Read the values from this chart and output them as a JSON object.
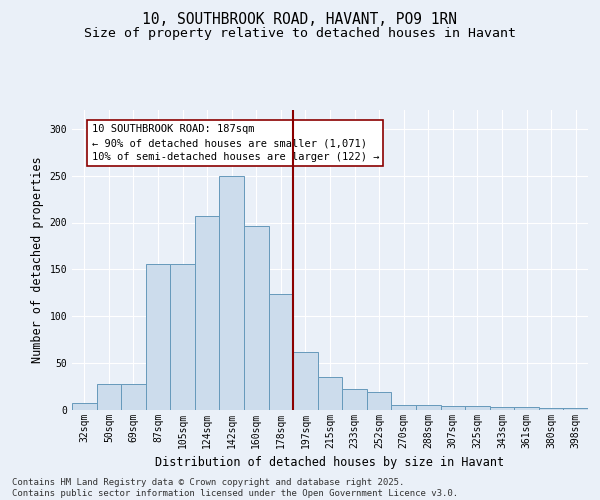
{
  "title_line1": "10, SOUTHBROOK ROAD, HAVANT, PO9 1RN",
  "title_line2": "Size of property relative to detached houses in Havant",
  "xlabel": "Distribution of detached houses by size in Havant",
  "ylabel": "Number of detached properties",
  "categories": [
    "32sqm",
    "50sqm",
    "69sqm",
    "87sqm",
    "105sqm",
    "124sqm",
    "142sqm",
    "160sqm",
    "178sqm",
    "197sqm",
    "215sqm",
    "233sqm",
    "252sqm",
    "270sqm",
    "288sqm",
    "307sqm",
    "325sqm",
    "343sqm",
    "361sqm",
    "380sqm",
    "398sqm"
  ],
  "values": [
    7,
    28,
    28,
    156,
    156,
    207,
    250,
    196,
    124,
    62,
    35,
    22,
    19,
    5,
    5,
    4,
    4,
    3,
    3,
    2,
    2
  ],
  "bar_color": "#ccdcec",
  "bar_edge_color": "#6699bb",
  "vline_color": "#8b0000",
  "annotation_text": "10 SOUTHBROOK ROAD: 187sqm\n← 90% of detached houses are smaller (1,071)\n10% of semi-detached houses are larger (122) →",
  "annotation_box_color": "#ffffff",
  "annotation_box_edge": "#8b0000",
  "ylim": [
    0,
    320
  ],
  "yticks": [
    0,
    50,
    100,
    150,
    200,
    250,
    300
  ],
  "background_color": "#eaf0f8",
  "grid_color": "#ffffff",
  "footer_text": "Contains HM Land Registry data © Crown copyright and database right 2025.\nContains public sector information licensed under the Open Government Licence v3.0.",
  "title_fontsize": 10.5,
  "subtitle_fontsize": 9.5,
  "axis_label_fontsize": 8.5,
  "tick_fontsize": 7,
  "footer_fontsize": 6.5,
  "annot_fontsize": 7.5
}
